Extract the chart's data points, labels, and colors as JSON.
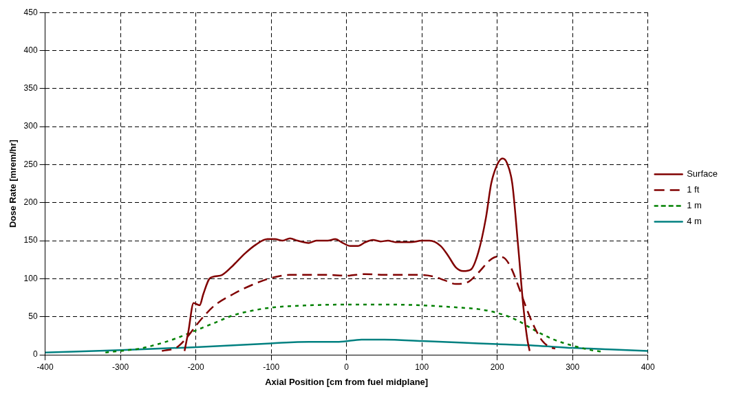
{
  "chart_data": {
    "type": "line",
    "xlabel": "Axial Position [cm from fuel midplane]",
    "ylabel": "Dose Rate [mrem/hr]",
    "xlim": [
      -400,
      400
    ],
    "xticks": [
      -400,
      -300,
      -200,
      -100,
      0,
      100,
      200,
      300,
      400
    ],
    "ylim": [
      0,
      450
    ],
    "yticks": [
      0,
      50,
      100,
      150,
      200,
      250,
      300,
      350,
      400,
      450
    ],
    "grid": true,
    "legend": "right",
    "marker": "none",
    "series": [
      {
        "name": "Surface",
        "color": "#800000",
        "line_style": "solid",
        "x": [
          -215,
          -210,
          -203,
          -195,
          -190,
          -182,
          -175,
          -165,
          -150,
          -135,
          -120,
          -105,
          -95,
          -85,
          -75,
          -65,
          -50,
          -40,
          -25,
          -15,
          -5,
          5,
          15,
          25,
          35,
          45,
          55,
          65,
          85,
          100,
          110,
          125,
          135,
          145,
          155,
          165,
          175,
          185,
          192,
          200,
          207,
          213,
          220,
          228,
          235,
          240,
          243
        ],
        "values": [
          5,
          30,
          68,
          65,
          80,
          100,
          103,
          105,
          118,
          133,
          145,
          152,
          152,
          150,
          153,
          150,
          147,
          150,
          150,
          152,
          147,
          143,
          143,
          148,
          151,
          149,
          150,
          148,
          148,
          150,
          150,
          143,
          130,
          115,
          110,
          112,
          135,
          180,
          225,
          250,
          258,
          252,
          225,
          140,
          60,
          20,
          5
        ]
      },
      {
        "name": "1 ft",
        "color": "#800000",
        "line_style": "dashed",
        "x": [
          -245,
          -225,
          -210,
          -200,
          -190,
          -175,
          -150,
          -125,
          -100,
          -75,
          -50,
          -25,
          0,
          25,
          50,
          75,
          100,
          115,
          130,
          145,
          160,
          175,
          190,
          200,
          208,
          218,
          230,
          240,
          250,
          260,
          270,
          277
        ],
        "values": [
          5,
          10,
          25,
          38,
          50,
          65,
          80,
          92,
          101,
          105,
          105,
          105,
          104,
          106,
          105,
          105,
          105,
          103,
          98,
          93,
          95,
          108,
          124,
          129,
          128,
          115,
          85,
          58,
          35,
          18,
          10,
          8
        ]
      },
      {
        "name": "1 m",
        "color": "#008000",
        "line_style": "dotted",
        "x": [
          -320,
          -300,
          -275,
          -250,
          -225,
          -200,
          -175,
          -150,
          -125,
          -100,
          -50,
          0,
          50,
          100,
          150,
          175,
          200,
          225,
          250,
          275,
          300,
          325,
          340
        ],
        "values": [
          3,
          5,
          8,
          14,
          22,
          32,
          42,
          52,
          58,
          62,
          65,
          66,
          66,
          65,
          62,
          60,
          55,
          46,
          32,
          20,
          12,
          6,
          4
        ]
      },
      {
        "name": "4 m",
        "color": "#008080",
        "line_style": "solid",
        "x": [
          -400,
          -300,
          -200,
          -100,
          -50,
          -10,
          20,
          50,
          100,
          150,
          200,
          250,
          300,
          350,
          400
        ],
        "values": [
          3,
          6,
          10,
          15,
          17,
          17,
          20,
          20,
          18,
          16,
          14,
          12,
          9,
          7,
          5
        ]
      }
    ]
  }
}
